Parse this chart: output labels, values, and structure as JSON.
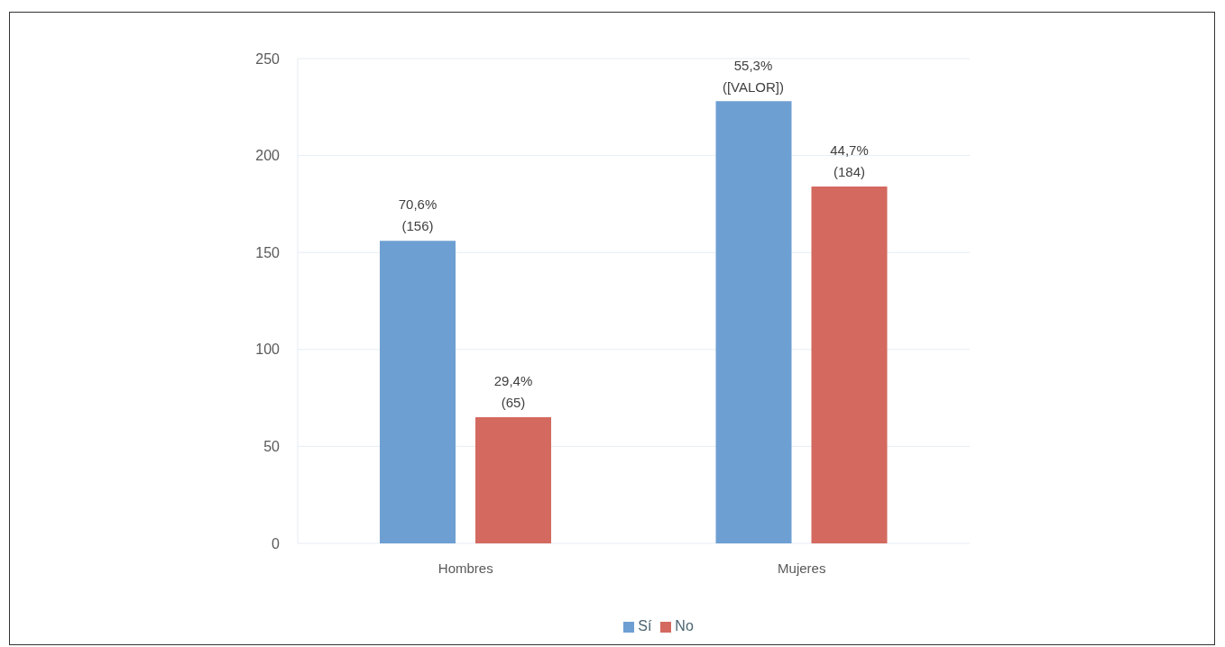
{
  "chart_data": {
    "type": "bar",
    "categories": [
      "Hombres",
      "Mujeres"
    ],
    "series": [
      {
        "name": "Sí",
        "color": "#6e9fd2",
        "values": [
          156,
          228
        ],
        "value_labels": [
          "70,6%\n(156)",
          null
        ]
      },
      {
        "name": "No",
        "color": "#d4695f",
        "values": [
          65,
          184
        ],
        "value_labels": [
          "29,4%\n(65)",
          "44,7%\n(184)"
        ]
      }
    ],
    "annotations": [
      "55,3%\n([VALOR])"
    ],
    "ylim": [
      0,
      250
    ],
    "yticks": [
      0,
      50,
      100,
      150,
      200,
      250
    ],
    "grid": "y",
    "legend": "bottom"
  }
}
